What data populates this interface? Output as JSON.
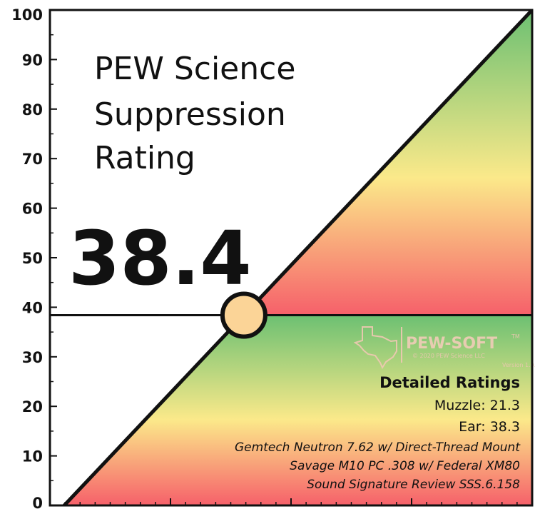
{
  "chart_data": {
    "type": "line",
    "title": [
      "PEW Science",
      "Suppression",
      "Rating"
    ],
    "rating_display": "38.4",
    "rating_value": 38.4,
    "ylim": [
      0,
      100
    ],
    "y_ticks": [
      0,
      10,
      20,
      30,
      40,
      50,
      60,
      70,
      80,
      90,
      100
    ],
    "y_tick_labels": [
      "0",
      "10",
      "20",
      "30",
      "40",
      "50",
      "60",
      "70",
      "80",
      "90",
      "100"
    ],
    "xlabel": "",
    "ylabel": "",
    "grid": false,
    "details": {
      "heading": "Detailed Ratings",
      "lines": [
        "Muzzle: 21.3",
        "Ear: 38.3"
      ],
      "italic_lines": [
        "Gemtech Neutron 7.62 w/ Direct-Thread Mount",
        "Savage M10 PC .308 w/ Federal XM80",
        "Sound Signature Review SSS.6.158"
      ]
    },
    "watermark": {
      "brand": "PEW-SOFT",
      "mark": "TM",
      "copyright": "© 2020 PEW Science LLC",
      "version": "Version 1.0.2"
    },
    "colors": {
      "gradient_top": "#6cc072",
      "gradient_mid": "#fbe98a",
      "gradient_bottom": "#f6606a",
      "marker_fill": "#fbd497",
      "line": "#111111"
    }
  }
}
